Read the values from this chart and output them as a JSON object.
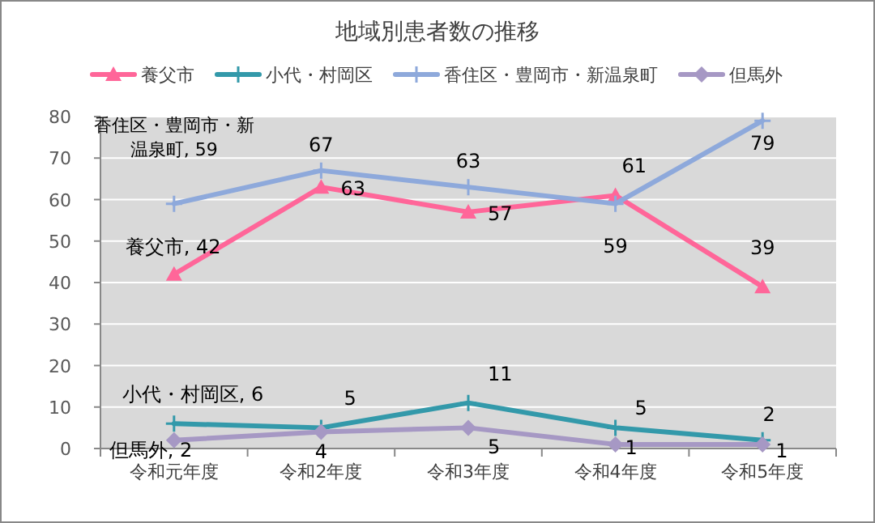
{
  "chart_data": {
    "type": "line",
    "title": "地域別患者数の推移",
    "categories": [
      "令和元年度",
      "令和2年度",
      "令和3年度",
      "令和4年度",
      "令和5年度"
    ],
    "series": [
      {
        "name": "養父市",
        "color": "#ff6699",
        "marker": "triangle",
        "values": [
          42,
          63,
          57,
          61,
          39
        ],
        "value_labels": [
          "養父市, 42",
          "63",
          "57",
          "61",
          "39"
        ]
      },
      {
        "name": "小代・村岡区",
        "color": "#3399aa",
        "marker": "cross",
        "values": [
          6,
          5,
          11,
          5,
          2
        ],
        "value_labels": [
          "小代・村岡区, 6",
          "5",
          "11",
          "5",
          "2"
        ]
      },
      {
        "name": "香住区・豊岡市・新温泉町",
        "color": "#8ea9db",
        "marker": "cross",
        "values": [
          59,
          67,
          63,
          59,
          79
        ],
        "value_labels": [
          "香住区・豊岡市・新温泉町, 59",
          "67",
          "63",
          "59",
          "79"
        ]
      },
      {
        "name": "但馬外",
        "color": "#a698c4",
        "marker": "diamond",
        "values": [
          2,
          4,
          5,
          1,
          1
        ],
        "value_labels": [
          "但馬外, 2",
          "4",
          "5",
          "1",
          "1"
        ]
      }
    ],
    "ylim": [
      0,
      80
    ],
    "yticks": [
      0,
      10,
      20,
      30,
      40,
      50,
      60,
      70,
      80
    ],
    "grid": "y",
    "legend": "top",
    "line_style": "solid"
  }
}
